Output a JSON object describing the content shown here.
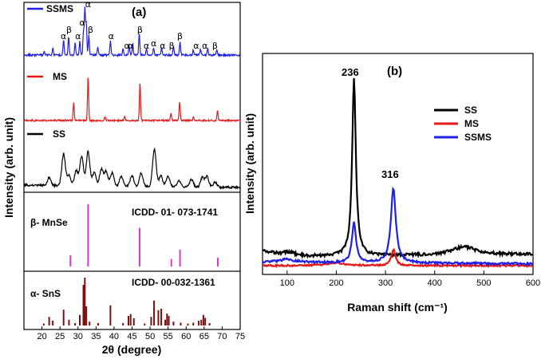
{
  "chart_data": [
    {
      "panel": "(a)",
      "type": "line",
      "xlabel": "2θ (degree)",
      "ylabel": "Intensity (arb. unit)",
      "xlim": [
        15,
        75
      ],
      "xticks": [
        "20",
        "25",
        "30",
        "35",
        "40",
        "45",
        "50",
        "55",
        "60",
        "65",
        "70",
        "75"
      ],
      "series": [
        {
          "name": "SSMS",
          "color": "#1f1fe6",
          "peaks": [
            [
              20.6,
              0.8
            ],
            [
              23.0,
              1.4
            ],
            [
              26.0,
              3.0
            ],
            [
              27.4,
              3.8
            ],
            [
              29.2,
              2.5
            ],
            [
              30.5,
              2.8
            ],
            [
              31.5,
              4.5
            ],
            [
              31.9,
              9.5
            ],
            [
              32.3,
              6.5
            ],
            [
              33.0,
              4.0
            ],
            [
              35.5,
              1.5
            ],
            [
              39.0,
              3.0
            ],
            [
              42.5,
              1.2
            ],
            [
              44.2,
              2.0
            ],
            [
              45.2,
              2.2
            ],
            [
              47.0,
              4.3
            ],
            [
              49.0,
              1.3
            ],
            [
              51.0,
              1.5
            ],
            [
              53.2,
              1.6
            ],
            [
              56.5,
              1.6
            ],
            [
              58.3,
              2.6
            ],
            [
              62.0,
              1.0
            ],
            [
              64.0,
              1.3
            ],
            [
              66.0,
              1.2
            ],
            [
              68.5,
              1.0
            ]
          ]
        },
        {
          "name": "MS",
          "color": "#e61919",
          "peaks": [
            [
              28.8,
              3.4
            ],
            [
              32.8,
              8.5
            ],
            [
              37.5,
              0.8
            ],
            [
              43.0,
              0.8
            ],
            [
              47.2,
              7.2
            ],
            [
              55.8,
              1.3
            ],
            [
              58.2,
              3.6
            ],
            [
              62.0,
              0.6
            ],
            [
              68.7,
              2.0
            ]
          ]
        },
        {
          "name": "SS",
          "color": "#000000",
          "peaks": [
            [
              22.0,
              1.5
            ],
            [
              26.0,
              6.0
            ],
            [
              27.5,
              2.0
            ],
            [
              29.5,
              2.8
            ],
            [
              31.0,
              5.5
            ],
            [
              32.8,
              6.5
            ],
            [
              34.5,
              2.5
            ],
            [
              36.5,
              3.2
            ],
            [
              37.8,
              2.8
            ],
            [
              39.5,
              2.5
            ],
            [
              42.0,
              1.8
            ],
            [
              45.0,
              2.0
            ],
            [
              47.5,
              2.5
            ],
            [
              51.2,
              7.0
            ],
            [
              53.0,
              2.0
            ],
            [
              55.0,
              2.0
            ],
            [
              58.0,
              1.2
            ],
            [
              61.5,
              1.4
            ],
            [
              64.5,
              1.8
            ],
            [
              65.8,
              2.0
            ],
            [
              68.0,
              1.0
            ]
          ]
        }
      ],
      "labels": {
        "ssms": "SSMS",
        "ms": "MS",
        "ss": "SS",
        "mnse_phase": "β- MnSe",
        "mnse_icdd": "ICDD- 01- 073-1741",
        "sns_phase": "α- SnS",
        "sns_icdd": "ICDD- 00-032-1361"
      },
      "reference_mnse": {
        "color": "#e636c8",
        "lines": [
          [
            27.9,
            0.18
          ],
          [
            32.8,
            1.0
          ],
          [
            47.1,
            0.62
          ],
          [
            55.9,
            0.12
          ],
          [
            58.3,
            0.27
          ],
          [
            68.8,
            0.14
          ]
        ]
      },
      "reference_sns": {
        "color": "#7a1010",
        "lines": [
          [
            20.5,
            0.04
          ],
          [
            22.0,
            0.18
          ],
          [
            23.0,
            0.1
          ],
          [
            26.0,
            0.33
          ],
          [
            27.5,
            0.12
          ],
          [
            29.2,
            0.05
          ],
          [
            30.5,
            0.22
          ],
          [
            31.5,
            0.85
          ],
          [
            31.9,
            1.0
          ],
          [
            32.3,
            0.4
          ],
          [
            33.2,
            0.08
          ],
          [
            35.6,
            0.05
          ],
          [
            39.0,
            0.42
          ],
          [
            42.5,
            0.05
          ],
          [
            44.0,
            0.2
          ],
          [
            44.6,
            0.24
          ],
          [
            45.5,
            0.15
          ],
          [
            48.5,
            0.04
          ],
          [
            50.3,
            0.18
          ],
          [
            51.1,
            0.52
          ],
          [
            52.3,
            0.32
          ],
          [
            53.1,
            0.35
          ],
          [
            54.2,
            0.12
          ],
          [
            54.7,
            0.25
          ],
          [
            55.2,
            0.2
          ],
          [
            56.5,
            0.08
          ],
          [
            58.5,
            0.06
          ],
          [
            60.5,
            0.04
          ],
          [
            62.0,
            0.06
          ],
          [
            63.5,
            0.1
          ],
          [
            64.2,
            0.12
          ],
          [
            64.8,
            0.22
          ],
          [
            65.3,
            0.16
          ],
          [
            66.5,
            0.05
          ]
        ]
      },
      "phase_labels": [
        {
          "t": "α",
          "x": 26.0,
          "row": 1
        },
        {
          "t": "β",
          "x": 27.5,
          "row": 0
        },
        {
          "t": "α",
          "x": 30.0,
          "row": 1
        },
        {
          "t": "α",
          "x": 31.2,
          "row": -1
        },
        {
          "t": "α",
          "x": 32.8,
          "row": -2
        },
        {
          "t": "β",
          "x": 33.5,
          "row": 0
        },
        {
          "t": "α",
          "x": 39.2,
          "row": 1
        },
        {
          "t": "α",
          "x": 43.6,
          "row": 2
        },
        {
          "t": "α",
          "x": 44.6,
          "row": 2
        },
        {
          "t": "β",
          "x": 47.2,
          "row": 0
        },
        {
          "t": "α",
          "x": 49.0,
          "row": 2
        },
        {
          "t": "α",
          "x": 51.0,
          "row": 1.7
        },
        {
          "t": "α",
          "x": 53.5,
          "row": 2
        },
        {
          "t": "β",
          "x": 56.0,
          "row": 2
        },
        {
          "t": "β",
          "x": 58.3,
          "row": 1
        },
        {
          "t": "α",
          "x": 62.8,
          "row": 2
        },
        {
          "t": "α",
          "x": 65.2,
          "row": 2
        },
        {
          "t": "β",
          "x": 68.0,
          "row": 2
        }
      ]
    },
    {
      "panel": "(b)",
      "type": "line",
      "xlabel": "Raman shift (cm⁻¹)",
      "ylabel": "Intensity (arb. unit)",
      "xlim": [
        50,
        600
      ],
      "xticks": [
        "100",
        "200",
        "300",
        "400",
        "500",
        "600"
      ],
      "annotations": [
        "236",
        "316"
      ],
      "series": [
        {
          "name": "SS",
          "color": "#000000"
        },
        {
          "name": "MS",
          "color": "#e61919"
        },
        {
          "name": "SSMS",
          "color": "#1f1fe6"
        }
      ]
    }
  ]
}
